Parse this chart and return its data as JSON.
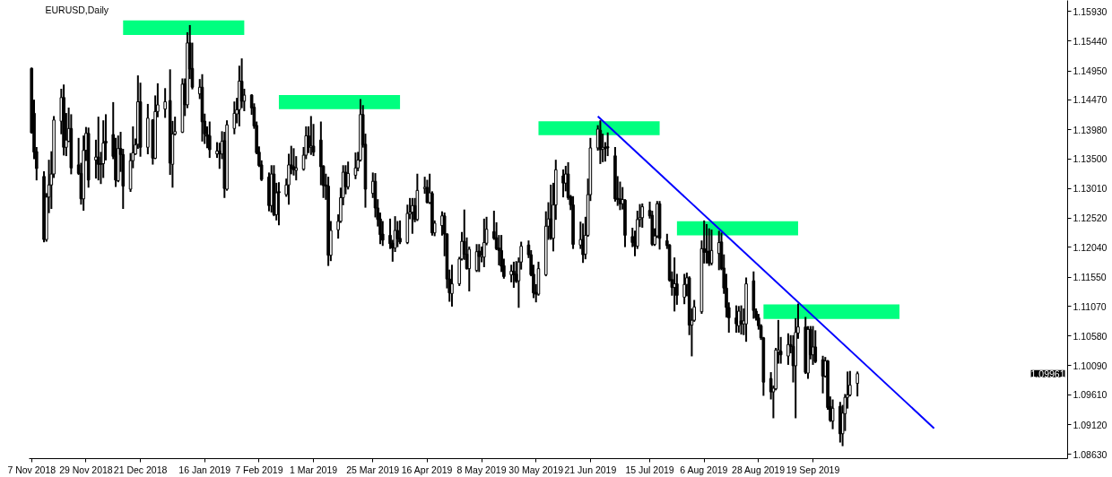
{
  "chart_data": {
    "type": "candlestick",
    "title": "EURUSD,Daily",
    "xlim": [
      "2018-11-06",
      "2019-12-31"
    ],
    "xticks": [
      {
        "value": "2018-11-07",
        "label": "7 Nov 2018"
      },
      {
        "value": "2018-11-29",
        "label": "29 Nov 2018"
      },
      {
        "value": "2018-12-21",
        "label": "21 Dec 2018"
      },
      {
        "value": "2019-01-16",
        "label": "16 Jan 2019"
      },
      {
        "value": "2019-02-07",
        "label": "7 Feb 2019"
      },
      {
        "value": "2019-03-01",
        "label": "1 Mar 2019"
      },
      {
        "value": "2019-03-25",
        "label": "25 Mar 2019"
      },
      {
        "value": "2019-04-16",
        "label": "16 Apr 2019"
      },
      {
        "value": "2019-05-08",
        "label": "8 May 2019"
      },
      {
        "value": "2019-05-30",
        "label": "30 May 2019"
      },
      {
        "value": "2019-06-21",
        "label": "21 Jun 2019"
      },
      {
        "value": "2019-07-15",
        "label": "15 Jul 2019"
      },
      {
        "value": "2019-08-06",
        "label": "6 Aug 2019"
      },
      {
        "value": "2019-08-28",
        "label": "28 Aug 2019"
      },
      {
        "value": "2019-09-19",
        "label": "19 Sep 2019"
      }
    ],
    "ylim": [
      1.0856,
      1.1611
    ],
    "yticks": [
      {
        "value": 1.1593,
        "label": "1.15930"
      },
      {
        "value": 1.1544,
        "label": "1.15440"
      },
      {
        "value": 1.1495,
        "label": "1.14950"
      },
      {
        "value": 1.1447,
        "label": "1.14470"
      },
      {
        "value": 1.1398,
        "label": "1.13980"
      },
      {
        "value": 1.135,
        "label": "1.13500"
      },
      {
        "value": 1.1301,
        "label": "1.13010"
      },
      {
        "value": 1.1252,
        "label": "1.12520"
      },
      {
        "value": 1.1204,
        "label": "1.12040"
      },
      {
        "value": 1.1155,
        "label": "1.11550"
      },
      {
        "value": 1.1107,
        "label": "1.11070"
      },
      {
        "value": 1.1058,
        "label": "1.10580"
      },
      {
        "value": 1.1009,
        "label": "1.10090"
      },
      {
        "value": 1.0961,
        "label": "1.09610"
      },
      {
        "value": 1.0912,
        "label": "1.09120"
      },
      {
        "value": 1.0863,
        "label": "1.08630"
      }
    ],
    "annotations": [
      "1.09961"
    ],
    "series": [
      {
        "type": "line",
        "color": "#00ff7f",
        "x": [
          "2018-12-14",
          "2019-02-01"
        ],
        "values": [
          null,
          null
        ],
        "lower": [
          1.1554,
          1.1554
        ],
        "upper": [
          1.1578,
          1.1578
        ]
      },
      {
        "type": "line",
        "color": "#00ff7f",
        "x": [
          "2019-02-15",
          "2019-04-05"
        ],
        "values": [
          null,
          null
        ],
        "lower": [
          1.1432,
          1.1432
        ],
        "upper": [
          1.1455,
          1.1455
        ]
      },
      {
        "type": "line",
        "color": "#00ff7f",
        "x": [
          "2019-05-31",
          "2019-07-19"
        ],
        "values": [
          null,
          null
        ],
        "lower": [
          1.1389,
          1.1389
        ],
        "upper": [
          1.1412,
          1.1412
        ]
      },
      {
        "type": "line",
        "color": "#00ff7f",
        "x": [
          "2019-07-26",
          "2019-09-13"
        ],
        "values": [
          null,
          null
        ],
        "lower": [
          1.1224,
          1.1224
        ],
        "upper": [
          1.1247,
          1.1247
        ]
      },
      {
        "type": "line",
        "color": "#00ff7f",
        "x": [
          "2019-08-30",
          "2019-10-24"
        ],
        "values": [
          null,
          null
        ],
        "lower": [
          1.1086,
          1.1086
        ],
        "upper": [
          1.111,
          1.111
        ]
      },
      {
        "type": "line",
        "color": "#0000ff",
        "x": [
          "2019-06-24",
          "2019-11-07"
        ],
        "values": [
          1.142,
          1.0906
        ]
      },
      {
        "color": "#000000",
        "x": [
          "2018-11-07",
          "2018-11-08",
          "2018-11-09",
          "2018-11-12",
          "2018-11-13",
          "2018-11-14",
          "2018-11-15",
          "2018-11-16",
          "2018-11-19",
          "2018-11-20",
          "2018-11-21",
          "2018-11-22",
          "2018-11-23",
          "2018-11-26",
          "2018-11-27",
          "2018-11-28",
          "2018-11-29",
          "2018-11-30",
          "2018-12-03",
          "2018-12-04",
          "2018-12-05",
          "2018-12-06",
          "2018-12-07",
          "2018-12-10",
          "2018-12-11",
          "2018-12-12",
          "2018-12-13",
          "2018-12-14",
          "2018-12-17",
          "2018-12-18",
          "2018-12-19",
          "2018-12-20",
          "2018-12-21",
          "2018-12-24",
          "2018-12-26",
          "2018-12-27",
          "2018-12-28",
          "2018-12-31",
          "2019-01-02",
          "2019-01-03",
          "2019-01-04",
          "2019-01-07",
          "2019-01-08",
          "2019-01-09",
          "2019-01-10",
          "2019-01-11",
          "2019-01-14",
          "2019-01-15",
          "2019-01-16",
          "2019-01-17",
          "2019-01-18",
          "2019-01-21",
          "2019-01-22",
          "2019-01-23",
          "2019-01-24",
          "2019-01-25",
          "2019-01-28",
          "2019-01-29",
          "2019-01-30",
          "2019-01-31",
          "2019-02-01",
          "2019-02-04",
          "2019-02-05",
          "2019-02-06",
          "2019-02-07",
          "2019-02-08",
          "2019-02-11",
          "2019-02-12",
          "2019-02-13",
          "2019-02-14",
          "2019-02-15",
          "2019-02-18",
          "2019-02-19",
          "2019-02-20",
          "2019-02-21",
          "2019-02-22",
          "2019-02-25",
          "2019-02-26",
          "2019-02-27",
          "2019-02-28",
          "2019-03-01",
          "2019-03-04",
          "2019-03-05",
          "2019-03-06",
          "2019-03-07",
          "2019-03-08",
          "2019-03-11",
          "2019-03-12",
          "2019-03-13",
          "2019-03-14",
          "2019-03-15",
          "2019-03-18",
          "2019-03-19",
          "2019-03-20",
          "2019-03-21",
          "2019-03-22",
          "2019-03-25",
          "2019-03-26",
          "2019-03-27",
          "2019-03-28",
          "2019-03-29",
          "2019-04-01",
          "2019-04-02",
          "2019-04-03",
          "2019-04-04",
          "2019-04-05",
          "2019-04-08",
          "2019-04-09",
          "2019-04-10",
          "2019-04-11",
          "2019-04-12",
          "2019-04-15",
          "2019-04-16",
          "2019-04-17",
          "2019-04-18",
          "2019-04-19",
          "2019-04-22",
          "2019-04-23",
          "2019-04-24",
          "2019-04-25",
          "2019-04-26",
          "2019-04-29",
          "2019-04-30",
          "2019-05-01",
          "2019-05-02",
          "2019-05-03",
          "2019-05-06",
          "2019-05-07",
          "2019-05-08",
          "2019-05-09",
          "2019-05-10",
          "2019-05-13",
          "2019-05-14",
          "2019-05-15",
          "2019-05-16",
          "2019-05-17",
          "2019-05-20",
          "2019-05-21",
          "2019-05-22",
          "2019-05-23",
          "2019-05-24",
          "2019-05-27",
          "2019-05-28",
          "2019-05-29",
          "2019-05-30",
          "2019-05-31",
          "2019-06-03",
          "2019-06-04",
          "2019-06-05",
          "2019-06-06",
          "2019-06-07",
          "2019-06-10",
          "2019-06-11",
          "2019-06-12",
          "2019-06-13",
          "2019-06-14",
          "2019-06-17",
          "2019-06-18",
          "2019-06-19",
          "2019-06-20",
          "2019-06-21",
          "2019-06-24",
          "2019-06-25",
          "2019-06-26",
          "2019-06-27",
          "2019-06-28",
          "2019-07-01",
          "2019-07-02",
          "2019-07-03",
          "2019-07-04",
          "2019-07-05",
          "2019-07-08",
          "2019-07-09",
          "2019-07-10",
          "2019-07-11",
          "2019-07-12",
          "2019-07-15",
          "2019-07-16",
          "2019-07-17",
          "2019-07-18",
          "2019-07-19",
          "2019-07-22",
          "2019-07-23",
          "2019-07-24",
          "2019-07-25",
          "2019-07-26",
          "2019-07-29",
          "2019-07-30",
          "2019-07-31",
          "2019-08-01",
          "2019-08-02",
          "2019-08-05",
          "2019-08-06",
          "2019-08-07",
          "2019-08-08",
          "2019-08-09",
          "2019-08-12",
          "2019-08-13",
          "2019-08-14",
          "2019-08-15",
          "2019-08-16",
          "2019-08-19",
          "2019-08-20",
          "2019-08-21",
          "2019-08-22",
          "2019-08-23",
          "2019-08-26",
          "2019-08-27",
          "2019-08-28",
          "2019-08-29",
          "2019-08-30",
          "2019-09-02",
          "2019-09-03",
          "2019-09-04",
          "2019-09-05",
          "2019-09-06",
          "2019-09-09",
          "2019-09-10",
          "2019-09-11",
          "2019-09-12",
          "2019-09-13",
          "2019-09-16",
          "2019-09-17",
          "2019-09-18",
          "2019-09-19",
          "2019-09-20",
          "2019-09-23",
          "2019-09-24",
          "2019-09-25",
          "2019-09-26",
          "2019-09-27",
          "2019-09-30",
          "2019-10-01",
          "2019-10-02",
          "2019-10-03",
          "2019-10-04",
          "2019-10-07"
        ],
        "ohlc": [
          [
            1.1499,
            1.1499,
            1.1393,
            1.1393
          ],
          [
            1.1425,
            1.1446,
            1.1351,
            1.1361
          ],
          [
            1.1362,
            1.1368,
            1.1316,
            1.1334
          ],
          [
            1.1321,
            1.1328,
            1.1214,
            1.1217
          ],
          [
            1.1217,
            1.1292,
            1.1215,
            1.1287
          ],
          [
            1.1287,
            1.1347,
            1.1262,
            1.1307
          ],
          [
            1.1307,
            1.1361,
            1.1269,
            1.1325
          ],
          [
            1.1325,
            1.1419,
            1.132,
            1.1414
          ],
          [
            1.1412,
            1.1464,
            1.1392,
            1.1451
          ],
          [
            1.1451,
            1.1471,
            1.1357,
            1.1369
          ],
          [
            1.1369,
            1.1424,
            1.1356,
            1.1381
          ],
          [
            1.1379,
            1.1433,
            1.1379,
            1.14
          ],
          [
            1.14,
            1.1422,
            1.1326,
            1.1335
          ],
          [
            1.134,
            1.1383,
            1.1325,
            1.1326
          ],
          [
            1.1326,
            1.1342,
            1.1276,
            1.1284
          ],
          [
            1.1284,
            1.1387,
            1.1266,
            1.1364
          ],
          [
            1.1364,
            1.1401,
            1.1348,
            1.1392
          ],
          [
            1.1392,
            1.14,
            1.1304,
            1.1315
          ],
          [
            1.1348,
            1.138,
            1.1319,
            1.1353
          ],
          [
            1.1353,
            1.1418,
            1.1316,
            1.1341
          ],
          [
            1.1342,
            1.136,
            1.131,
            1.1341
          ],
          [
            1.1342,
            1.1412,
            1.132,
            1.1376
          ],
          [
            1.1379,
            1.1422,
            1.1349,
            1.1376
          ],
          [
            1.139,
            1.1442,
            1.1351,
            1.1354
          ],
          [
            1.1355,
            1.1383,
            1.1305,
            1.1315
          ],
          [
            1.1314,
            1.1387,
            1.1313,
            1.1367
          ],
          [
            1.1367,
            1.1393,
            1.133,
            1.1357
          ],
          [
            1.1357,
            1.1365,
            1.1269,
            1.1305
          ],
          [
            1.13,
            1.1358,
            1.1297,
            1.1347
          ],
          [
            1.1347,
            1.1402,
            1.1336,
            1.136
          ],
          [
            1.1358,
            1.1382,
            1.1358,
            1.1373
          ],
          [
            1.1374,
            1.1486,
            1.1368,
            1.1444
          ],
          [
            1.1444,
            1.1474,
            1.1355,
            1.1369
          ],
          [
            1.1369,
            1.1439,
            1.1359,
            1.1417
          ],
          [
            1.1414,
            1.1414,
            1.1342,
            1.1351
          ],
          [
            1.1351,
            1.1453,
            1.1351,
            1.1428
          ],
          [
            1.1428,
            1.1473,
            1.142,
            1.1439
          ],
          [
            1.1432,
            1.1465,
            1.1419,
            1.1444
          ],
          [
            1.1446,
            1.1496,
            1.1325,
            1.1343
          ],
          [
            1.1341,
            1.1411,
            1.1304,
            1.1391
          ],
          [
            1.1391,
            1.1418,
            1.139,
            1.1395
          ],
          [
            1.1394,
            1.1481,
            1.1394,
            1.1473
          ],
          [
            1.1474,
            1.1481,
            1.1422,
            1.1439
          ],
          [
            1.1439,
            1.1557,
            1.1435,
            1.1541
          ],
          [
            1.1541,
            1.1569,
            1.1483,
            1.1498
          ],
          [
            1.1499,
            1.154,
            1.1466,
            1.1468
          ],
          [
            1.1457,
            1.148,
            1.145,
            1.1468
          ],
          [
            1.1468,
            1.1488,
            1.138,
            1.1411
          ],
          [
            1.1412,
            1.1423,
            1.1376,
            1.1391
          ],
          [
            1.139,
            1.1402,
            1.1369,
            1.1387
          ],
          [
            1.1388,
            1.141,
            1.1353,
            1.1365
          ],
          [
            1.1358,
            1.1376,
            1.1353,
            1.1363
          ],
          [
            1.1363,
            1.1375,
            1.1335,
            1.1358
          ],
          [
            1.1358,
            1.1394,
            1.1351,
            1.1379
          ],
          [
            1.138,
            1.1393,
            1.1287,
            1.1301
          ],
          [
            1.13,
            1.1412,
            1.1299,
            1.1406
          ],
          [
            1.14,
            1.1443,
            1.1392,
            1.1425
          ],
          [
            1.1424,
            1.1449,
            1.141,
            1.1431
          ],
          [
            1.1431,
            1.1502,
            1.1405,
            1.1478
          ],
          [
            1.1478,
            1.1514,
            1.1435,
            1.1445
          ],
          [
            1.1445,
            1.1464,
            1.143,
            1.1455
          ],
          [
            1.1455,
            1.1455,
            1.1424,
            1.1434
          ],
          [
            1.1435,
            1.144,
            1.1401,
            1.1404
          ],
          [
            1.1405,
            1.141,
            1.1359,
            1.136
          ],
          [
            1.1361,
            1.1369,
            1.1338,
            1.1339
          ],
          [
            1.134,
            1.1346,
            1.1315,
            1.1316
          ],
          [
            1.132,
            1.1326,
            1.1265,
            1.1273
          ],
          [
            1.1273,
            1.1338,
            1.1263,
            1.1325
          ],
          [
            1.1325,
            1.1338,
            1.1257,
            1.1258
          ],
          [
            1.1258,
            1.1309,
            1.125,
            1.1294
          ],
          [
            1.1296,
            1.131,
            1.1242,
            1.1294
          ],
          [
            1.1291,
            1.1316,
            1.1289,
            1.1307
          ],
          [
            1.1307,
            1.1357,
            1.1276,
            1.134
          ],
          [
            1.134,
            1.137,
            1.1326,
            1.1334
          ],
          [
            1.1337,
            1.1366,
            1.1324,
            1.1332
          ],
          [
            1.1331,
            1.1353,
            1.1316,
            1.1335
          ],
          [
            1.1333,
            1.1368,
            1.1332,
            1.1356
          ],
          [
            1.1356,
            1.1402,
            1.1351,
            1.1388
          ],
          [
            1.1388,
            1.1402,
            1.1361,
            1.1369
          ],
          [
            1.1369,
            1.1419,
            1.1358,
            1.1371
          ],
          [
            1.1371,
            1.1406,
            1.1356,
            1.1361
          ],
          [
            1.1381,
            1.141,
            1.1308,
            1.1337
          ],
          [
            1.1338,
            1.1338,
            1.1287,
            1.1306
          ],
          [
            1.1307,
            1.1324,
            1.1284,
            1.1305
          ],
          [
            1.1305,
            1.1319,
            1.1175,
            1.1191
          ],
          [
            1.1191,
            1.1246,
            1.1183,
            1.1232
          ],
          [
            1.1233,
            1.1257,
            1.122,
            1.1247
          ],
          [
            1.1247,
            1.1301,
            1.1246,
            1.1286
          ],
          [
            1.1286,
            1.1338,
            1.1275,
            1.1328
          ],
          [
            1.1328,
            1.1338,
            1.1293,
            1.1304
          ],
          [
            1.1304,
            1.1344,
            1.1301,
            1.1326
          ],
          [
            1.1323,
            1.1359,
            1.1318,
            1.1335
          ],
          [
            1.1335,
            1.136,
            1.1331,
            1.1348
          ],
          [
            1.1348,
            1.1447,
            1.1347,
            1.1423
          ],
          [
            1.1423,
            1.1437,
            1.137,
            1.1373
          ],
          [
            1.1374,
            1.139,
            1.1271,
            1.13
          ],
          [
            1.1293,
            1.1326,
            1.1287,
            1.1313
          ],
          [
            1.1313,
            1.1325,
            1.1255,
            1.1269
          ],
          [
            1.1269,
            1.1282,
            1.124,
            1.125
          ],
          [
            1.1251,
            1.126,
            1.1211,
            1.1225
          ],
          [
            1.1226,
            1.1246,
            1.1208,
            1.1216
          ],
          [
            1.1224,
            1.125,
            1.1203,
            1.121
          ],
          [
            1.1211,
            1.1215,
            1.1182,
            1.1203
          ],
          [
            1.1203,
            1.1254,
            1.1198,
            1.1232
          ],
          [
            1.1232,
            1.1246,
            1.1206,
            1.1218
          ],
          [
            1.1219,
            1.1247,
            1.1211,
            1.1213
          ],
          [
            1.1212,
            1.1273,
            1.1211,
            1.126
          ],
          [
            1.1259,
            1.1284,
            1.1252,
            1.1262
          ],
          [
            1.1262,
            1.1284,
            1.1228,
            1.1273
          ],
          [
            1.1273,
            1.1284,
            1.1247,
            1.125
          ],
          [
            1.125,
            1.1324,
            1.1249,
            1.1298
          ],
          [
            1.1301,
            1.1319,
            1.1294,
            1.1303
          ],
          [
            1.1303,
            1.1314,
            1.1278,
            1.1278
          ],
          [
            1.1278,
            1.1324,
            1.1277,
            1.1294
          ],
          [
            1.1293,
            1.1295,
            1.1225,
            1.1228
          ],
          [
            1.1228,
            1.1247,
            1.1224,
            1.1244
          ],
          [
            1.124,
            1.1262,
            1.1225,
            1.1256
          ],
          [
            1.1256,
            1.126,
            1.1191,
            1.1226
          ],
          [
            1.1226,
            1.1226,
            1.1138,
            1.1152
          ],
          [
            1.1152,
            1.1166,
            1.1116,
            1.1129
          ],
          [
            1.1128,
            1.1174,
            1.1108,
            1.1144
          ],
          [
            1.1144,
            1.1187,
            1.1142,
            1.1185
          ],
          [
            1.1185,
            1.1228,
            1.1184,
            1.1214
          ],
          [
            1.1214,
            1.1265,
            1.1185,
            1.1193
          ],
          [
            1.1193,
            1.1219,
            1.1169,
            1.1169
          ],
          [
            1.1169,
            1.1204,
            1.1133,
            1.1201
          ],
          [
            1.1166,
            1.1208,
            1.1165,
            1.1197
          ],
          [
            1.1198,
            1.1208,
            1.1165,
            1.1189
          ],
          [
            1.1189,
            1.1204,
            1.1181,
            1.1191
          ],
          [
            1.1188,
            1.125,
            1.1173,
            1.1212
          ],
          [
            1.1211,
            1.1253,
            1.1209,
            1.1234
          ],
          [
            1.123,
            1.1263,
            1.1218,
            1.1219
          ],
          [
            1.122,
            1.1244,
            1.1201,
            1.1202
          ],
          [
            1.1203,
            1.1223,
            1.1176,
            1.1199
          ],
          [
            1.1199,
            1.1223,
            1.1165,
            1.1173
          ],
          [
            1.1174,
            1.1184,
            1.1154,
            1.1156
          ],
          [
            1.1159,
            1.1174,
            1.1148,
            1.1165
          ],
          [
            1.1165,
            1.1179,
            1.1139,
            1.1159
          ],
          [
            1.116,
            1.118,
            1.1147,
            1.1148
          ],
          [
            1.1149,
            1.1186,
            1.1106,
            1.118
          ],
          [
            1.118,
            1.1212,
            1.1169,
            1.1206
          ],
          [
            1.1208,
            1.1214,
            1.1188,
            1.1192
          ],
          [
            1.1192,
            1.1198,
            1.1158,
            1.1159
          ],
          [
            1.116,
            1.1174,
            1.1122,
            1.1129
          ],
          [
            1.113,
            1.1142,
            1.1115,
            1.1127
          ],
          [
            1.1127,
            1.1179,
            1.1126,
            1.1169
          ],
          [
            1.1159,
            1.1262,
            1.1158,
            1.1239
          ],
          [
            1.1239,
            1.1277,
            1.1218,
            1.1251
          ],
          [
            1.1251,
            1.1306,
            1.1218,
            1.1219
          ],
          [
            1.1219,
            1.1309,
            1.1199,
            1.1274
          ],
          [
            1.1274,
            1.1347,
            1.1251,
            1.1332
          ],
          [
            1.1322,
            1.1331,
            1.1288,
            1.131
          ],
          [
            1.131,
            1.1337,
            1.1298,
            1.1325
          ],
          [
            1.1325,
            1.1343,
            1.1284,
            1.1286
          ],
          [
            1.1288,
            1.1289,
            1.1267,
            1.1274
          ],
          [
            1.1274,
            1.1287,
            1.1203,
            1.1209
          ],
          [
            1.1208,
            1.1245,
            1.1203,
            1.1217
          ],
          [
            1.1217,
            1.1242,
            1.118,
            1.1192
          ],
          [
            1.1193,
            1.1253,
            1.1186,
            1.1224
          ],
          [
            1.1224,
            1.1316,
            1.1223,
            1.1291
          ],
          [
            1.1291,
            1.1383,
            1.1282,
            1.1368
          ],
          [
            1.1368,
            1.1404,
            1.1365,
            1.1399
          ],
          [
            1.1397,
            1.1412,
            1.1343,
            1.1365
          ],
          [
            1.1366,
            1.139,
            1.1346,
            1.1369
          ],
          [
            1.1369,
            1.1376,
            1.1347,
            1.1367
          ],
          [
            1.137,
            1.1392,
            1.1356,
            1.1368
          ],
          [
            1.1355,
            1.1368,
            1.1281,
            1.1284
          ],
          [
            1.1285,
            1.132,
            1.1274,
            1.1283
          ],
          [
            1.1284,
            1.1311,
            1.1267,
            1.1276
          ],
          [
            1.1276,
            1.1302,
            1.1268,
            1.1283
          ],
          [
            1.1282,
            1.1282,
            1.1206,
            1.1224
          ],
          [
            1.1222,
            1.1235,
            1.1206,
            1.1212
          ],
          [
            1.1213,
            1.123,
            1.1191,
            1.1206
          ],
          [
            1.1206,
            1.1263,
            1.1203,
            1.125
          ],
          [
            1.125,
            1.1274,
            1.1239,
            1.1253
          ],
          [
            1.1253,
            1.1275,
            1.1238,
            1.1271
          ],
          [
            1.1265,
            1.1278,
            1.1253,
            1.1256
          ],
          [
            1.1257,
            1.1263,
            1.1208,
            1.1209
          ],
          [
            1.1209,
            1.1234,
            1.1208,
            1.1223
          ],
          [
            1.1223,
            1.1279,
            1.1221,
            1.1276
          ],
          [
            1.1276,
            1.1279,
            1.1202,
            1.1219
          ],
          [
            1.1215,
            1.1225,
            1.1203,
            1.1207
          ],
          [
            1.1208,
            1.1208,
            1.1149,
            1.115
          ],
          [
            1.1151,
            1.1163,
            1.1126,
            1.1138
          ],
          [
            1.1138,
            1.1186,
            1.11,
            1.1144
          ],
          [
            1.1144,
            1.1159,
            1.1111,
            1.1125
          ],
          [
            1.1122,
            1.1159,
            1.1112,
            1.1143
          ],
          [
            1.1143,
            1.1161,
            1.1125,
            1.1154
          ],
          [
            1.1154,
            1.1155,
            1.1061,
            1.1076
          ],
          [
            1.1076,
            1.1102,
            1.1026,
            1.1084
          ],
          [
            1.1084,
            1.1116,
            1.1083,
            1.1106
          ],
          [
            1.1098,
            1.1214,
            1.1096,
            1.1202
          ],
          [
            1.1202,
            1.1247,
            1.1179,
            1.1196
          ],
          [
            1.1198,
            1.1241,
            1.1179,
            1.1196
          ],
          [
            1.1198,
            1.1234,
            1.1175,
            1.1178
          ],
          [
            1.1178,
            1.1232,
            1.1176,
            1.1199
          ],
          [
            1.1194,
            1.123,
            1.1168,
            1.1212
          ],
          [
            1.1213,
            1.1227,
            1.1168,
            1.1169
          ],
          [
            1.117,
            1.1191,
            1.1129,
            1.1137
          ],
          [
            1.1137,
            1.1159,
            1.109,
            1.1105
          ],
          [
            1.1105,
            1.1112,
            1.1065,
            1.1088
          ],
          [
            1.1088,
            1.1107,
            1.1065,
            1.1078
          ],
          [
            1.1075,
            1.1106,
            1.1065,
            1.1099
          ],
          [
            1.1083,
            1.1107,
            1.1062,
            1.1078
          ],
          [
            1.1078,
            1.1102,
            1.1061,
            1.1083
          ],
          [
            1.1078,
            1.1153,
            1.105,
            1.1144
          ],
          [
            1.1149,
            1.1163,
            1.1088,
            1.11
          ],
          [
            1.1099,
            1.1102,
            1.1085,
            1.1088
          ],
          [
            1.1088,
            1.1093,
            1.107,
            1.1075
          ],
          [
            1.1075,
            1.1076,
            1.1053,
            1.1055
          ],
          [
            1.1055,
            1.1055,
            1.0961,
            1.0982
          ],
          [
            1.0988,
            1.0997,
            1.0955,
            1.0966
          ],
          [
            1.0966,
            1.0975,
            1.0924,
            1.0972
          ],
          [
            1.0971,
            1.1037,
            1.097,
            1.1035
          ],
          [
            1.1032,
            1.1083,
            1.1014,
            1.1035
          ],
          [
            1.1033,
            1.1055,
            1.1014,
            1.1027
          ],
          [
            1.1025,
            1.1061,
            1.1012,
            1.1044
          ],
          [
            1.1044,
            1.1058,
            1.1031,
            1.1041
          ],
          [
            1.1041,
            1.1058,
            1.0983,
            1.1009
          ],
          [
            1.1009,
            1.1086,
            1.0924,
            1.1064
          ],
          [
            1.1063,
            1.111,
            1.1055,
            1.1073
          ],
          [
            1.1073,
            1.1088,
            1.0997,
            1.0998
          ],
          [
            1.0997,
            1.1073,
            1.0989,
            1.1069
          ],
          [
            1.1069,
            1.1073,
            1.1021,
            1.1027
          ],
          [
            1.1027,
            1.1073,
            1.1012,
            1.104
          ],
          [
            1.104,
            1.1066,
            1.1015,
            1.1016
          ],
          [
            1.1019,
            1.1024,
            1.0965,
            1.0992
          ],
          [
            1.0992,
            1.1022,
            1.0991,
            1.1017
          ],
          [
            1.1017,
            1.1017,
            1.0938,
            1.094
          ],
          [
            1.0942,
            1.0957,
            1.0918,
            1.0919
          ],
          [
            1.0918,
            1.0952,
            1.0906,
            1.0939
          ],
          [
            1.0942,
            1.0948,
            1.0884,
            1.0897
          ],
          [
            1.0897,
            1.0943,
            1.0878,
            1.0931
          ],
          [
            1.093,
            1.0961,
            1.0903,
            1.0957
          ],
          [
            1.0957,
            1.0998,
            1.094,
            1.0961
          ],
          [
            1.0961,
            1.0999,
            1.096,
            1.0977
          ],
          [
            1.098,
            1.0998,
            1.096,
            1.0996
          ]
        ]
      }
    ]
  }
}
